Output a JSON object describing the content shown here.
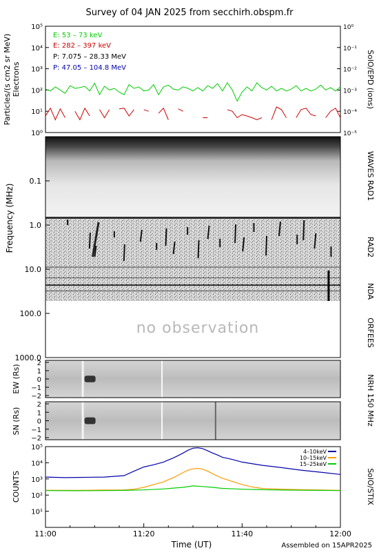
{
  "title": "Survey of 04 JAN 2025 from secchirh.obspm.fr",
  "footer": "Assembled on 15APR2025",
  "colors": {
    "green": "#00cc00",
    "red": "#cc0000",
    "blue": "#0000aa",
    "orange": "#ff9900",
    "black": "#000000"
  },
  "chart_data": [
    {
      "type": "line",
      "panel": "particles",
      "ylabel": "Particles/(s cm2 sr MeV)",
      "ylabel2": "Electrons",
      "right_label": "SolO/EPD (ions)",
      "yscale": "log",
      "ylim": [
        1,
        100000
      ],
      "yticks": [
        "10⁰",
        "10¹",
        "10²",
        "10³",
        "10⁴",
        "10⁵"
      ],
      "y2lim": [
        1e-05,
        1
      ],
      "y2ticks": [
        "10⁻⁵",
        "10⁻⁴",
        "10⁻³",
        "10⁻²",
        "10⁻¹",
        "10⁰"
      ],
      "x_minutes": [
        0,
        60
      ],
      "legend_position": "top-left",
      "series": [
        {
          "name": "E: 53 – 73 keV",
          "color": "#00cc00",
          "x": [
            0,
            1,
            2,
            3,
            4,
            5,
            6,
            7,
            8,
            9,
            10,
            11,
            12,
            13,
            14,
            15,
            16,
            17,
            18,
            19,
            20,
            21,
            22,
            23,
            24,
            25,
            26,
            27,
            28,
            29,
            30,
            31,
            32,
            33,
            34,
            35,
            36,
            37,
            38,
            39,
            40,
            41,
            42,
            43,
            44,
            45,
            46,
            47,
            48,
            49,
            50,
            51,
            52,
            53,
            54,
            55,
            56,
            57,
            58,
            59,
            60
          ],
          "values": [
            110,
            90,
            140,
            100,
            70,
            160,
            120,
            130,
            150,
            90,
            210,
            60,
            150,
            100,
            120,
            80,
            60,
            180,
            120,
            140,
            90,
            100,
            180,
            60,
            140,
            170,
            110,
            100,
            140,
            120,
            90,
            130,
            90,
            160,
            120,
            200,
            90,
            220,
            100,
            30,
            80,
            140,
            90,
            220,
            130,
            100,
            150,
            90,
            120,
            90,
            110,
            160,
            90,
            120,
            90,
            110,
            170,
            100,
            130,
            90,
            140
          ]
        },
        {
          "name": "E: 282 – 397 keV",
          "color": "#cc0000",
          "x": [
            0,
            1,
            2,
            3,
            4,
            5,
            6,
            7,
            8,
            9,
            10,
            11,
            12,
            13,
            14,
            15,
            16,
            17,
            18,
            19,
            20,
            21,
            22,
            23,
            24,
            25,
            26,
            27,
            28,
            29,
            30,
            31,
            32,
            33,
            34,
            35,
            36,
            37,
            38,
            39,
            40,
            41,
            42,
            43,
            44,
            45,
            46,
            47,
            48,
            49,
            50,
            51,
            52,
            53,
            54,
            55,
            56,
            57,
            58,
            59,
            60
          ],
          "values": [
            6,
            14,
            4,
            13,
            5,
            null,
            10,
            4,
            14,
            6,
            null,
            12,
            5,
            12,
            null,
            13,
            14,
            6,
            12,
            null,
            12,
            10,
            null,
            8,
            14,
            4,
            null,
            13,
            10,
            null,
            null,
            null,
            5,
            5,
            null,
            null,
            null,
            12,
            10,
            5,
            7,
            6,
            5,
            4,
            5,
            null,
            4,
            16,
            12,
            5,
            null,
            5,
            12,
            14,
            7,
            6,
            null,
            5,
            10,
            14,
            5
          ]
        },
        {
          "name": "P: 7.075 – 28.33 MeV",
          "color": "#000000",
          "x": [],
          "values": []
        },
        {
          "name": "P: 47.05 – 104.8 MeV",
          "color": "#0000aa",
          "x": [],
          "values": []
        }
      ]
    },
    {
      "type": "heatmap",
      "panel": "radio-spectrogram",
      "ylabel": "Frequency (MHz)",
      "yscale": "log",
      "ylim": [
        0.01,
        1000
      ],
      "yticks": [
        "0.1",
        "1.0",
        "10.0",
        "100.0",
        "1000.0"
      ],
      "instrument_labels": [
        "WAVES RAD1",
        "RAD2",
        "NDA",
        "ORFEES"
      ],
      "annotation": "no observation",
      "bursts_minutes": [
        4.5,
        9.1,
        10.3,
        14.0,
        16.1,
        19.6,
        22.6,
        24.6,
        26.3,
        28.9,
        31.2,
        33.3,
        35.5,
        38.7,
        40.4,
        42.4,
        45.0,
        47.8,
        51.2,
        52.6,
        55.0,
        58.1
      ]
    },
    {
      "type": "heatmap",
      "panel": "nrh-ew",
      "ylabel": "EW (Rs)",
      "right_label": "NRH 150 MHz",
      "ylim": [
        -2,
        2
      ],
      "yticks": [
        "−2",
        "−1",
        "0",
        "1",
        "2"
      ],
      "event_minutes": [
        8.5,
        23.7
      ]
    },
    {
      "type": "heatmap",
      "panel": "nrh-sn",
      "ylabel": "SN (Rs)",
      "ylim": [
        -2,
        2
      ],
      "yticks": [
        "−2",
        "−1",
        "0",
        "1",
        "2"
      ],
      "event_minutes": [
        8.5,
        23.7,
        34.6
      ]
    },
    {
      "type": "line",
      "panel": "stix",
      "ylabel": "COUNTS",
      "right_label": "SolO/STIX",
      "xlabel": "Time (UT)",
      "yscale": "log",
      "ylim": [
        1,
        100000
      ],
      "yticks": [
        "10¹",
        "10²",
        "10³",
        "10⁴",
        "10⁵"
      ],
      "xticks": [
        "11:00",
        "11:20",
        "11:40",
        "12:00"
      ],
      "x_minutes": [
        0,
        60
      ],
      "legend_position": "top-right",
      "series": [
        {
          "name": "4–10keV",
          "color": "#0000aa",
          "x": [
            0,
            4,
            8,
            12,
            16,
            18,
            20,
            22,
            24,
            25,
            26,
            27,
            28,
            29,
            30,
            31,
            32,
            33,
            34,
            35,
            36,
            38,
            40,
            44,
            48,
            52,
            56,
            60
          ],
          "values": [
            1300,
            1200,
            1250,
            1300,
            1600,
            3000,
            5500,
            7500,
            11000,
            15000,
            20000,
            28000,
            40000,
            60000,
            80000,
            85000,
            75000,
            55000,
            40000,
            30000,
            22000,
            16000,
            11000,
            7000,
            5000,
            3500,
            2600,
            1900
          ]
        },
        {
          "name": "10–15keV",
          "color": "#ff9900",
          "x": [
            0,
            6,
            12,
            16,
            18,
            20,
            22,
            24,
            25,
            26,
            27,
            28,
            29,
            30,
            31,
            32,
            33,
            34,
            35,
            36,
            38,
            40,
            42,
            44,
            48,
            52,
            56,
            60
          ],
          "values": [
            200,
            195,
            205,
            210,
            230,
            300,
            450,
            650,
            900,
            1200,
            1700,
            2500,
            3500,
            4200,
            4500,
            4000,
            3000,
            2100,
            1500,
            1100,
            700,
            450,
            320,
            260,
            230,
            215,
            205,
            195
          ]
        },
        {
          "name": "15–25keV",
          "color": "#00cc00",
          "x": [
            0,
            6,
            12,
            16,
            20,
            24,
            26,
            28,
            30,
            32,
            34,
            36,
            40,
            44,
            48,
            52,
            56,
            60
          ],
          "values": [
            190,
            185,
            190,
            195,
            210,
            240,
            270,
            300,
            370,
            340,
            300,
            260,
            230,
            215,
            205,
            200,
            195,
            190
          ]
        }
      ]
    }
  ]
}
